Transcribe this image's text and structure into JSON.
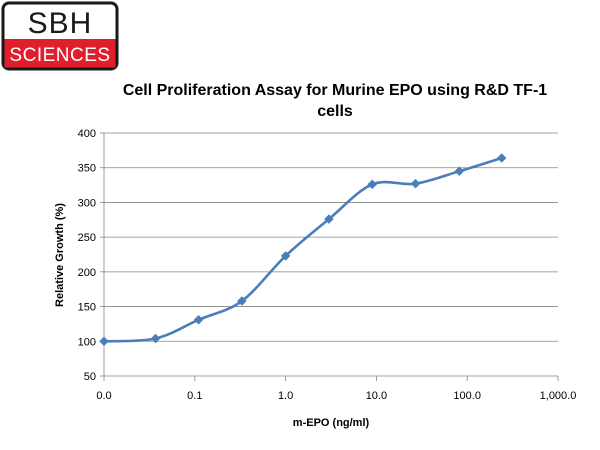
{
  "logo": {
    "line1": "SBH",
    "line2": "SCIENCES",
    "colors": {
      "frame": "#1a1a1a",
      "band": "#e01e2c",
      "text_top": "#1a1a1a",
      "text_band": "#ffffff"
    }
  },
  "chart_data": {
    "type": "line",
    "title": "Cell Proliferation Assay for Murine EPO using R&D TF-1 cells",
    "xlabel": "m-EPO (ng/ml)",
    "ylabel": "Relative Growth (%)",
    "x_scale": "log10",
    "x_ticks": [
      "0.0",
      "0.1",
      "1.0",
      "10.0",
      "100.0",
      "1,000.0"
    ],
    "y_ticks": [
      50,
      100,
      150,
      200,
      250,
      300,
      350,
      400
    ],
    "ylim": [
      50,
      400
    ],
    "grid": "horizontal",
    "legend": "none",
    "series": [
      {
        "x": [
          0.01,
          0.037,
          0.11,
          0.33,
          1.0,
          3.0,
          9.0,
          27.0,
          82.0,
          240.0
        ],
        "values": [
          100,
          104,
          131,
          158,
          223,
          276,
          326,
          327,
          345,
          364
        ],
        "color": "#4a7ebb"
      }
    ]
  }
}
